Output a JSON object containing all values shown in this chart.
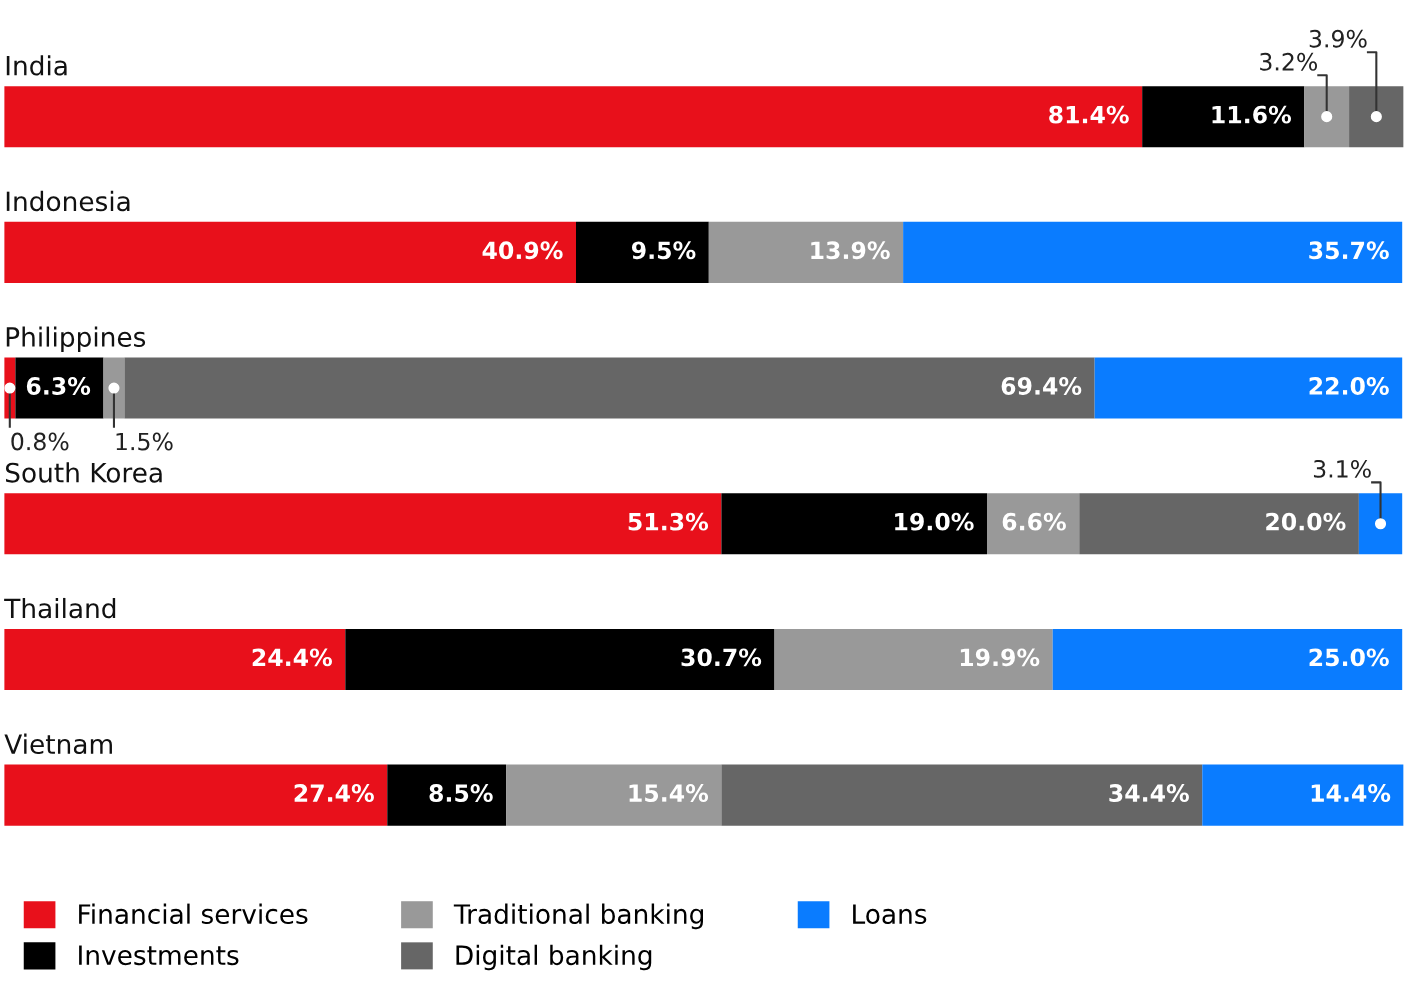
{
  "chart_data": {
    "type": "bar",
    "orientation": "horizontal",
    "stacked": true,
    "legend": "bottom",
    "categories": [
      "India",
      "Indonesia",
      "Philippines",
      "South Korea",
      "Thailand",
      "Vietnam"
    ],
    "series": [
      {
        "name": "Financial services",
        "color": "#e8101b",
        "values": [
          81.4,
          40.9,
          0.8,
          51.3,
          24.4,
          27.4
        ],
        "value_labels": [
          "81.4%",
          "40.9%",
          "0.8%",
          "51.3%",
          "24.4%",
          "27.4%"
        ]
      },
      {
        "name": "Investments",
        "color": "#000000",
        "values": [
          11.6,
          9.5,
          6.3,
          19.0,
          30.7,
          8.5
        ],
        "value_labels": [
          "11.6%",
          "9.5%",
          "6.3%",
          "19.0%",
          "30.7%",
          "8.5%"
        ]
      },
      {
        "name": "Traditional banking",
        "color": "#999999",
        "values": [
          3.2,
          13.9,
          1.5,
          6.6,
          19.9,
          15.4
        ],
        "value_labels": [
          "3.2%",
          "13.9%",
          "1.5%",
          "6.6%",
          "19.9%",
          "15.4%"
        ]
      },
      {
        "name": "Digital banking",
        "color": "#666666",
        "values": [
          3.9,
          null,
          69.4,
          20.0,
          null,
          34.4
        ],
        "value_labels": [
          "3.9%",
          null,
          "69.4%",
          "20.0%",
          null,
          "34.4%"
        ]
      },
      {
        "name": "Loans",
        "color": "#0a7cff",
        "values": [
          null,
          35.7,
          22.0,
          3.1,
          25.0,
          14.4
        ],
        "value_labels": [
          null,
          "35.7%",
          "22.0%",
          "3.1%",
          "25.0%",
          "14.4%"
        ]
      }
    ]
  }
}
